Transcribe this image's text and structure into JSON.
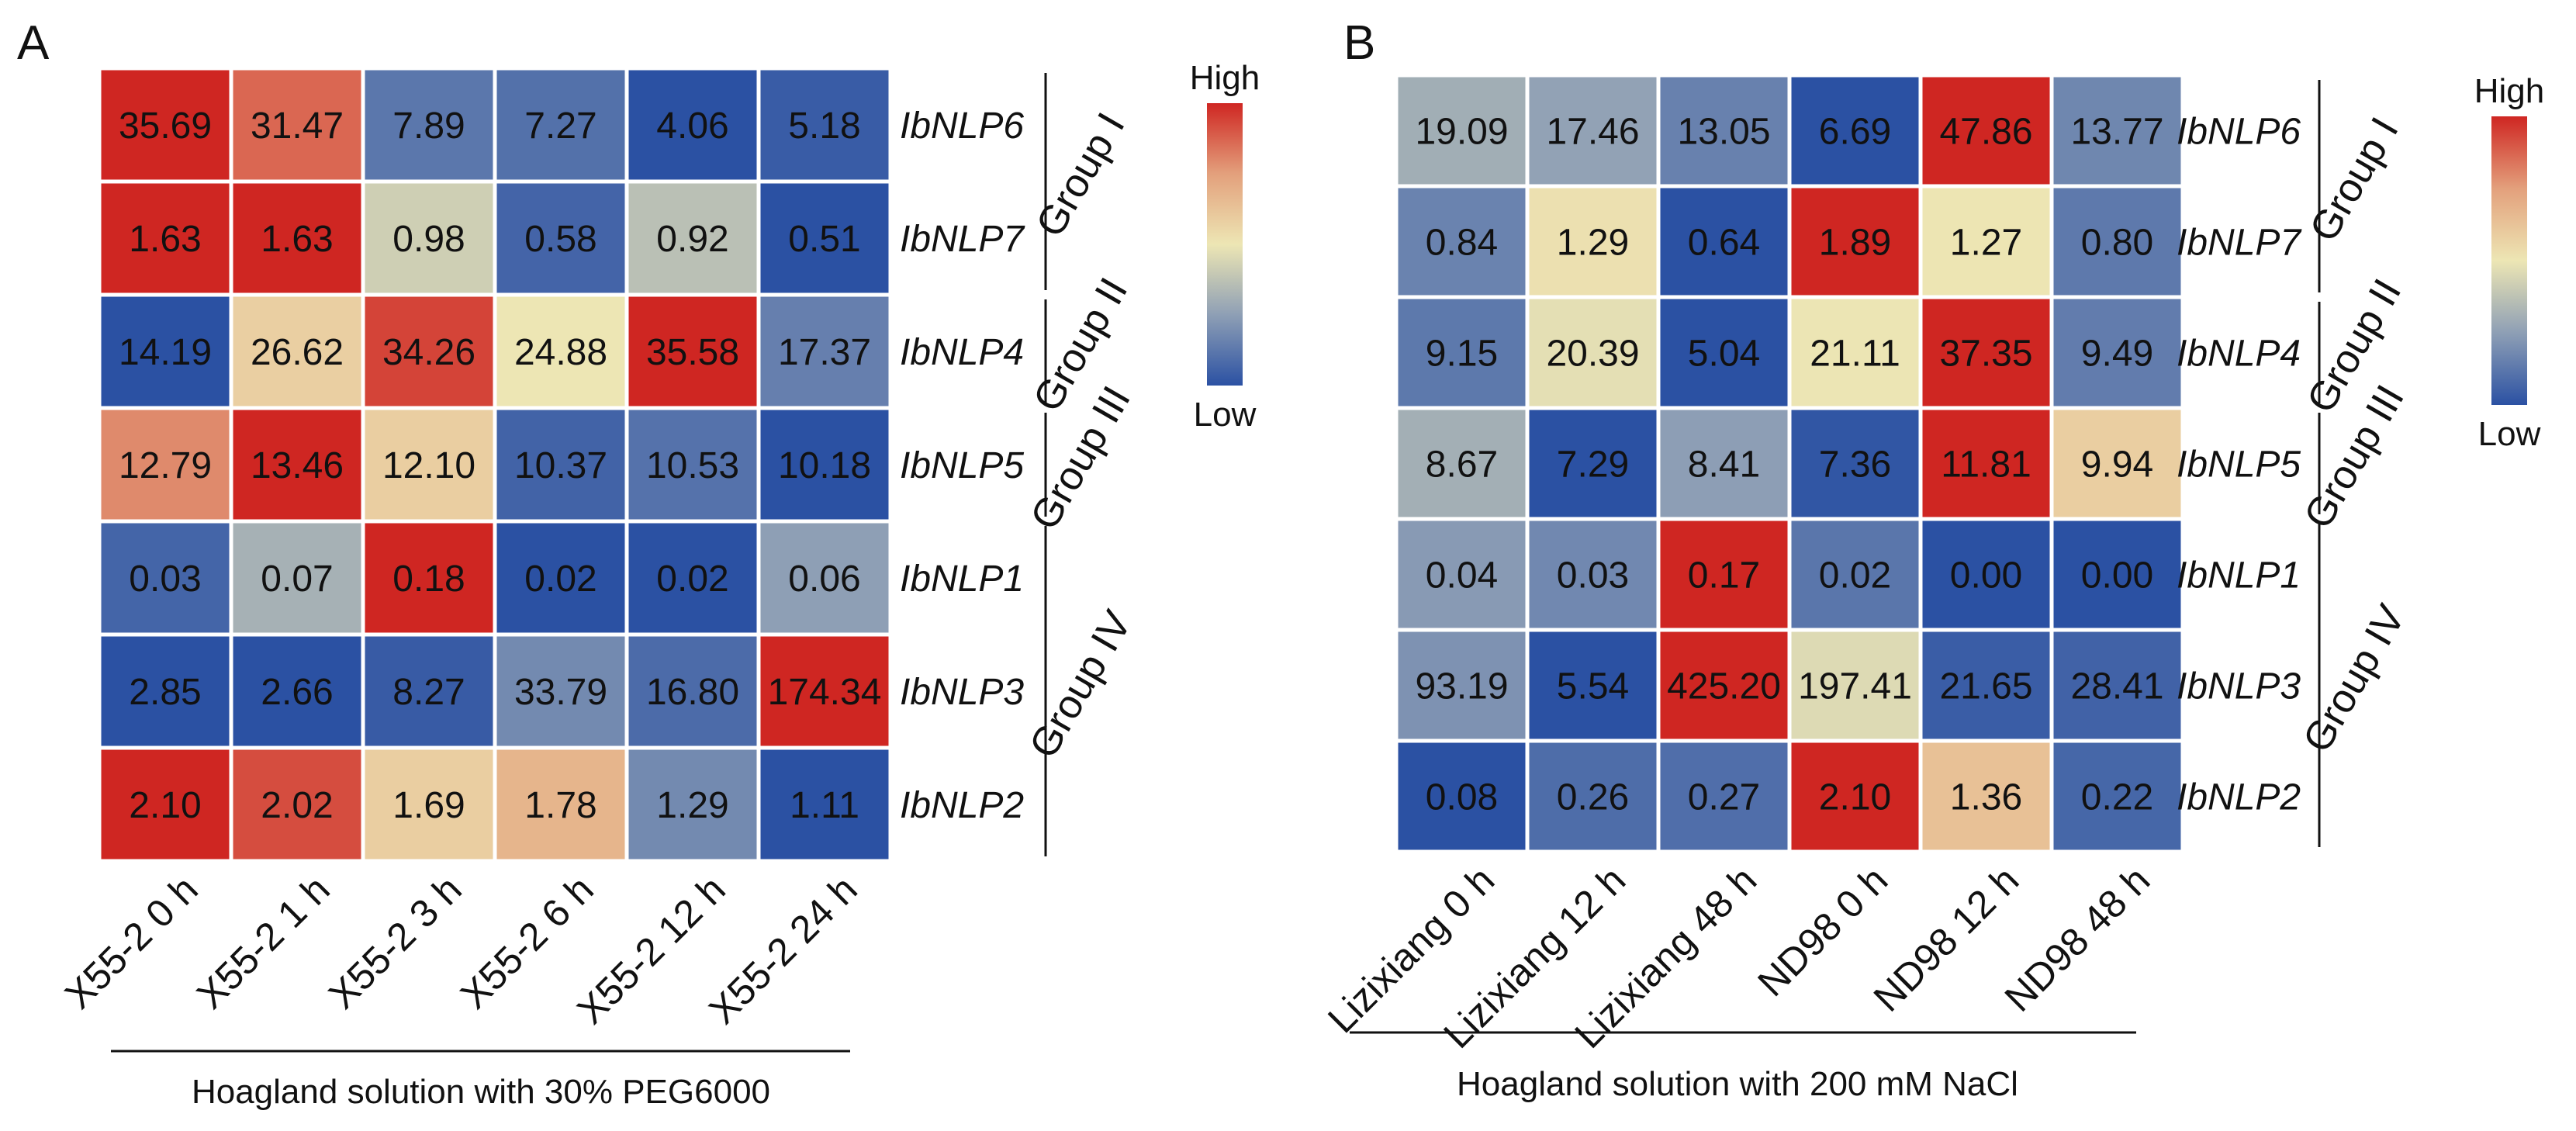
{
  "chart_data": [
    {
      "type": "heatmap",
      "panel": "A",
      "title": "Hoagland solution with 30% PEG6000",
      "categories": [
        "X55-2 0 h",
        "X55-2 1 h",
        "X55-2 3 h",
        "X55-2 6 h",
        "X55-2 12 h",
        "X55-2 24 h"
      ],
      "rows": [
        "IbNLP6",
        "IbNLP7",
        "IbNLP4",
        "IbNLP5",
        "IbNLP1",
        "IbNLP3",
        "IbNLP2"
      ],
      "values": [
        [
          "35.69",
          "31.47",
          "7.89",
          "7.27",
          "4.06",
          "5.18"
        ],
        [
          "1.63",
          "1.63",
          "0.98",
          "0.58",
          "0.92",
          "0.51"
        ],
        [
          "14.19",
          "26.62",
          "34.26",
          "24.88",
          "35.58",
          "17.37"
        ],
        [
          "12.79",
          "13.46",
          "12.10",
          "10.37",
          "10.53",
          "10.18"
        ],
        [
          "0.03",
          "0.07",
          "0.18",
          "0.02",
          "0.02",
          "0.06"
        ],
        [
          "2.85",
          "2.66",
          "8.27",
          "33.79",
          "16.80",
          "174.34"
        ],
        [
          "2.10",
          "2.02",
          "1.69",
          "1.78",
          "1.29",
          "1.11"
        ]
      ],
      "groups": [
        {
          "label": "Group I",
          "rows": [
            0,
            1
          ]
        },
        {
          "label": "Group II",
          "rows": [
            2,
            2
          ]
        },
        {
          "label": "Group III",
          "rows": [
            3,
            3
          ]
        },
        {
          "label": "Group IV",
          "rows": [
            4,
            6
          ]
        }
      ],
      "legend": {
        "high": "High",
        "low": "Low"
      }
    },
    {
      "type": "heatmap",
      "panel": "B",
      "title": "Hoagland solution with 200 mM NaCl",
      "categories": [
        "Lizixiang 0 h",
        "Lizixiang 12 h",
        "Lizixiang 48 h",
        "ND98 0 h",
        "ND98 12 h",
        "ND98 48 h"
      ],
      "rows": [
        "IbNLP6",
        "IbNLP7",
        "IbNLP4",
        "IbNLP5",
        "IbNLP1",
        "IbNLP3",
        "IbNLP2"
      ],
      "values": [
        [
          "19.09",
          "17.46",
          "13.05",
          "6.69",
          "47.86",
          "13.77"
        ],
        [
          "0.84",
          "1.29",
          "0.64",
          "1.89",
          "1.27",
          "0.80"
        ],
        [
          "9.15",
          "20.39",
          "5.04",
          "21.11",
          "37.35",
          "9.49"
        ],
        [
          "8.67",
          "7.29",
          "8.41",
          "7.36",
          "11.81",
          "9.94"
        ],
        [
          "0.04",
          "0.03",
          "0.17",
          "0.02",
          "0.00",
          "0.00"
        ],
        [
          "93.19",
          "5.54",
          "425.20",
          "197.41",
          "21.65",
          "28.41"
        ],
        [
          "0.08",
          "0.26",
          "0.27",
          "2.10",
          "1.36",
          "0.22"
        ]
      ],
      "groups": [
        {
          "label": "Group I",
          "rows": [
            0,
            1
          ]
        },
        {
          "label": "Group II",
          "rows": [
            2,
            2
          ]
        },
        {
          "label": "Group III",
          "rows": [
            3,
            3
          ]
        },
        {
          "label": "Group IV",
          "rows": [
            4,
            6
          ]
        }
      ],
      "legend": {
        "high": "High",
        "low": "Low"
      }
    }
  ],
  "colors": {
    "low": "#2b51a3",
    "mid_low": "#8e9fb5",
    "mid": "#ede6b4",
    "mid_high": "#e3a07c",
    "high": "#cf2622"
  }
}
